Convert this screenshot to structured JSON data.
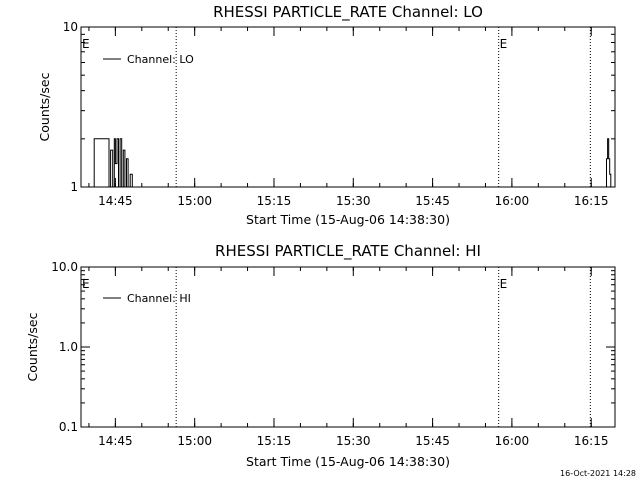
{
  "chart_data": [
    {
      "type": "line",
      "title": "RHESSI PARTICLE_RATE Channel: LO",
      "xlabel": "Start Time (15-Aug-06 14:38:30)",
      "ylabel": "Counts/sec",
      "yscale": "log",
      "ylim": [
        1,
        10
      ],
      "ytick_labels": [
        "1",
        "10"
      ],
      "ytick_values": [
        1,
        10
      ],
      "xlim_minutes_after_1438_30": [
        0,
        101
      ],
      "xtick_labels": [
        "14:45",
        "15:00",
        "15:15",
        "15:30",
        "15:45",
        "16:00",
        "16:15"
      ],
      "legend": {
        "position": "top-left",
        "entries": [
          "Channel: LO"
        ]
      },
      "event_markers": [
        {
          "time": "14:38:30",
          "label": "E"
        },
        {
          "time": "14:56:30",
          "label": ""
        },
        {
          "time": "15:57:30",
          "label": "E"
        },
        {
          "time": "16:14:50",
          "label": ""
        }
      ],
      "series": [
        {
          "name": "Channel: LO",
          "x_minutes": [
            2.5,
            2.5,
            5.3,
            5.3,
            5.6,
            5.6,
            6.0,
            6.0,
            6.3,
            6.3,
            6.5,
            6.5,
            6.8,
            6.8,
            7.1,
            7.1,
            7.4,
            7.4,
            7.7,
            7.7,
            8.0,
            8.0,
            8.3,
            8.3,
            8.6,
            8.6,
            8.9,
            8.9,
            9.3,
            9.3,
            9.7,
            9.7,
            99.4,
            99.4,
            99.6,
            99.6,
            99.8,
            99.8,
            100.0,
            100.0,
            100.2,
            100.2
          ],
          "y": [
            1,
            2,
            2,
            1,
            1,
            1.7,
            1.7,
            1,
            1,
            2,
            2,
            1.4,
            1.4,
            2,
            2,
            1,
            1,
            2,
            2,
            1,
            1,
            1.7,
            1.7,
            1,
            1,
            1.5,
            1.5,
            1,
            1,
            1.2,
            1.2,
            1,
            1,
            1.5,
            1.5,
            2,
            2,
            1.5,
            1.5,
            1.2,
            1.2,
            1
          ]
        }
      ]
    },
    {
      "type": "line",
      "title": "RHESSI PARTICLE_RATE Channel: HI",
      "xlabel": "Start Time (15-Aug-06 14:38:30)",
      "ylabel": "Counts/sec",
      "yscale": "log",
      "ylim": [
        0.1,
        10
      ],
      "ytick_labels": [
        "0.1",
        "1.0",
        "10.0"
      ],
      "ytick_values": [
        0.1,
        1,
        10
      ],
      "xlim_minutes_after_1438_30": [
        0,
        101
      ],
      "xtick_labels": [
        "14:45",
        "15:00",
        "15:15",
        "15:30",
        "15:45",
        "16:00",
        "16:15"
      ],
      "legend": {
        "position": "top-left",
        "entries": [
          "Channel: HI"
        ]
      },
      "event_markers": [
        {
          "time": "14:38:30",
          "label": "E"
        },
        {
          "time": "14:56:30",
          "label": ""
        },
        {
          "time": "15:57:30",
          "label": "E"
        },
        {
          "time": "16:14:50",
          "label": ""
        }
      ],
      "series": [
        {
          "name": "Channel: HI",
          "x_minutes": [],
          "y": []
        }
      ]
    }
  ],
  "footer": {
    "timestamp": "16-Oct-2021 14:28"
  },
  "colors": {
    "line": "#000000",
    "background": "#ffffff"
  }
}
